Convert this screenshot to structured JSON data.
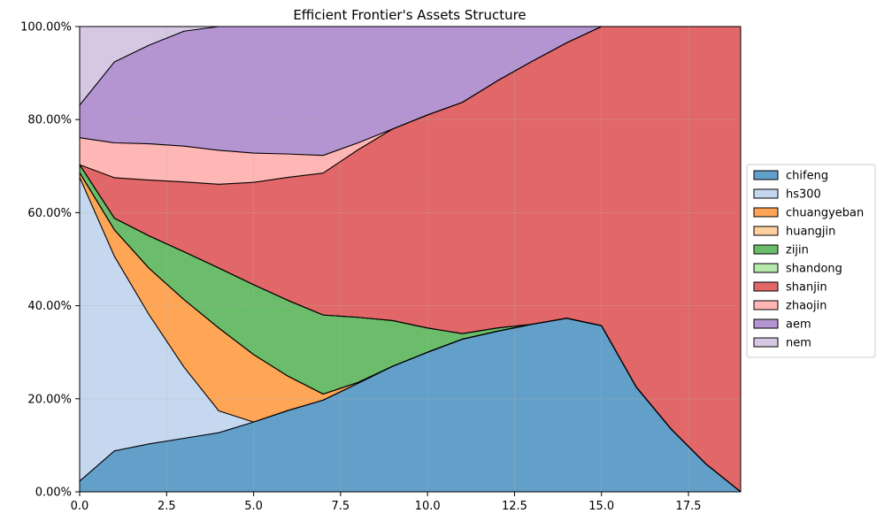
{
  "chart_data": {
    "type": "area",
    "stacked": true,
    "normalized": true,
    "title": "Efficient Frontier's Assets Structure",
    "xlabel": "",
    "ylabel": "",
    "xlim": [
      0,
      19
    ],
    "ylim": [
      0,
      1
    ],
    "x_ticks": [
      0,
      2.5,
      5,
      7.5,
      10,
      12.5,
      15,
      17.5
    ],
    "x_tick_labels": [
      "0.0",
      "2.5",
      "5.0",
      "7.5",
      "10.0",
      "12.5",
      "15.0",
      "17.5"
    ],
    "y_ticks": [
      0,
      0.2,
      0.4,
      0.6,
      0.8,
      1.0
    ],
    "y_tick_labels": [
      "0.00%",
      "20.00%",
      "40.00%",
      "60.00%",
      "80.00%",
      "100.00%"
    ],
    "grid": true,
    "legend_position": "right",
    "x": [
      0,
      1,
      2,
      3,
      4,
      5,
      6,
      7,
      8,
      9,
      10,
      11,
      12,
      13,
      14,
      15,
      16,
      17,
      18,
      19
    ],
    "series": [
      {
        "name": "chifeng",
        "color": "#1f77b4",
        "values": [
          0.023,
          0.088,
          0.103,
          0.115,
          0.127,
          0.15,
          0.175,
          0.197,
          0.233,
          0.27,
          0.3,
          0.328,
          0.345,
          0.36,
          0.373,
          0.357,
          0.225,
          0.135,
          0.06,
          0.0
        ]
      },
      {
        "name": "hs300",
        "color": "#aec7e8",
        "values": [
          0.653,
          0.418,
          0.277,
          0.153,
          0.047,
          0.0,
          0.0,
          0.0,
          0.0,
          0.0,
          0.0,
          0.0,
          0.0,
          0.0,
          0.0,
          0.0,
          0.0,
          0.0,
          0.0,
          0.0
        ]
      },
      {
        "name": "chuangyeban",
        "color": "#ff7f0e",
        "values": [
          0.01,
          0.057,
          0.1,
          0.145,
          0.178,
          0.145,
          0.073,
          0.013,
          0.002,
          0.0,
          0.0,
          0.0,
          0.0,
          0.0,
          0.0,
          0.0,
          0.0,
          0.0,
          0.0,
          0.0
        ]
      },
      {
        "name": "huangjin",
        "color": "#ffbb78",
        "values": [
          0.0,
          0.0,
          0.0,
          0.0,
          0.0,
          0.0,
          0.0,
          0.0,
          0.0,
          0.0,
          0.0,
          0.0,
          0.0,
          0.0,
          0.0,
          0.0,
          0.0,
          0.0,
          0.0,
          0.0
        ]
      },
      {
        "name": "zijin",
        "color": "#2ca02c",
        "values": [
          0.017,
          0.025,
          0.07,
          0.103,
          0.129,
          0.15,
          0.163,
          0.17,
          0.14,
          0.098,
          0.052,
          0.012,
          0.007,
          0.0,
          0.0,
          0.0,
          0.0,
          0.0,
          0.0,
          0.0
        ]
      },
      {
        "name": "shandong",
        "color": "#98df8a",
        "values": [
          0.0,
          0.0,
          0.0,
          0.0,
          0.0,
          0.0,
          0.0,
          0.0,
          0.0,
          0.0,
          0.0,
          0.0,
          0.0,
          0.0,
          0.0,
          0.0,
          0.0,
          0.0,
          0.0,
          0.0
        ]
      },
      {
        "name": "shanjin",
        "color": "#d62728",
        "values": [
          0.0,
          0.087,
          0.12,
          0.15,
          0.18,
          0.22,
          0.265,
          0.305,
          0.36,
          0.412,
          0.458,
          0.497,
          0.531,
          0.565,
          0.592,
          0.643,
          0.775,
          0.865,
          0.94,
          1.0
        ]
      },
      {
        "name": "zhaojin",
        "color": "#ff9896",
        "values": [
          0.058,
          0.075,
          0.078,
          0.077,
          0.073,
          0.063,
          0.05,
          0.038,
          0.015,
          0.0,
          0.0,
          0.0,
          0.0,
          0.0,
          0.0,
          0.0,
          0.0,
          0.0,
          0.0,
          0.0
        ]
      },
      {
        "name": "aem",
        "color": "#9467bd",
        "values": [
          0.07,
          0.174,
          0.212,
          0.247,
          0.266,
          0.272,
          0.274,
          0.277,
          0.25,
          0.22,
          0.19,
          0.163,
          0.117,
          0.075,
          0.035,
          0.0,
          0.0,
          0.0,
          0.0,
          0.0
        ]
      },
      {
        "name": "nem",
        "color": "#c5b0d5",
        "values": [
          0.169,
          0.076,
          0.04,
          0.01,
          0.0,
          0.0,
          0.0,
          0.0,
          0.0,
          0.0,
          0.0,
          0.0,
          0.0,
          0.0,
          0.0,
          0.0,
          0.0,
          0.0,
          0.0,
          0.0
        ]
      }
    ]
  }
}
